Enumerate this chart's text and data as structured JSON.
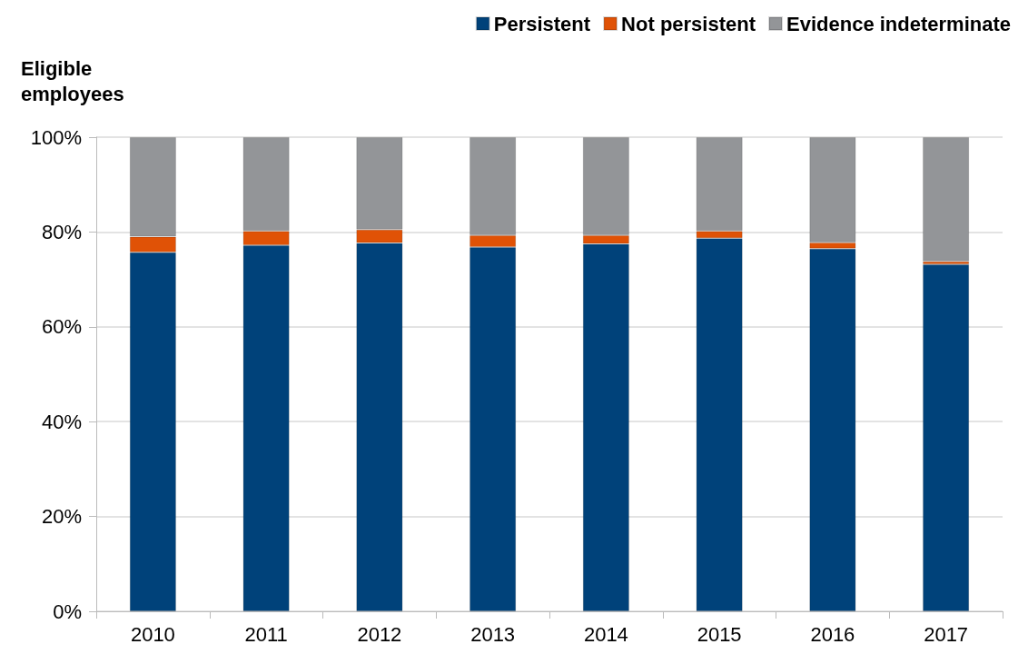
{
  "chart_data": {
    "type": "bar",
    "stacked": true,
    "ylabel": "Eligible employees",
    "categories": [
      "2010",
      "2011",
      "2012",
      "2013",
      "2014",
      "2015",
      "2016",
      "2017"
    ],
    "series": [
      {
        "name": "Persistent",
        "color": "#00427a",
        "values": [
          75.7,
          77.2,
          77.7,
          76.8,
          77.5,
          78.7,
          76.5,
          73.2
        ]
      },
      {
        "name": "Not persistent",
        "color": "#e05206",
        "values": [
          3.3,
          3.0,
          2.8,
          2.5,
          1.8,
          1.5,
          1.3,
          0.6
        ]
      },
      {
        "name": "Evidence indeterminate",
        "color": "#939598",
        "values": [
          21.0,
          19.8,
          19.5,
          20.7,
          20.7,
          19.8,
          22.2,
          26.2
        ]
      }
    ],
    "ylim": [
      0,
      100
    ],
    "yticks": [
      {
        "value": 0,
        "label": "0%"
      },
      {
        "value": 20,
        "label": "20%"
      },
      {
        "value": 40,
        "label": "40%"
      },
      {
        "value": 60,
        "label": "60%"
      },
      {
        "value": 80,
        "label": "80%"
      },
      {
        "value": 100,
        "label": "100%"
      }
    ],
    "grid": "y",
    "legend": "top right"
  }
}
